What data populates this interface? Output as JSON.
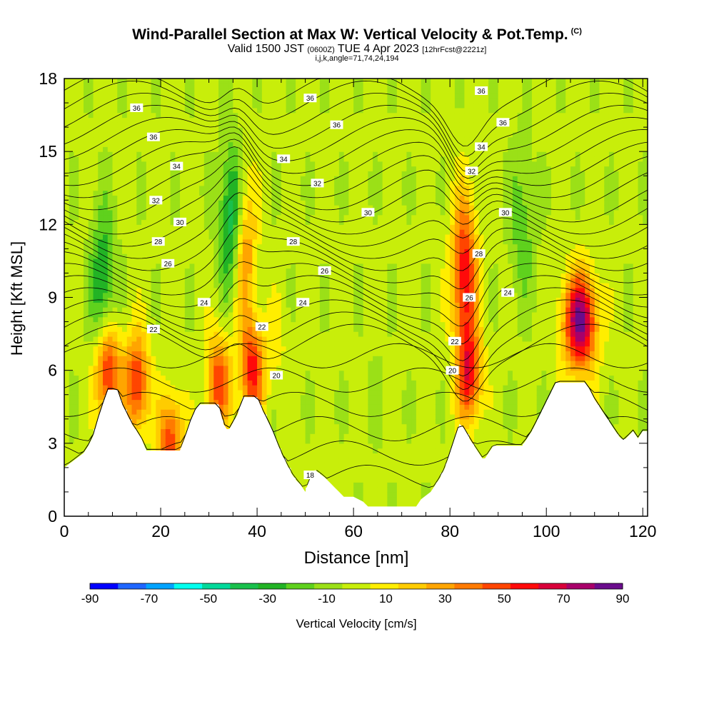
{
  "title": "Wind-Parallel Section at Max W: Vertical Velocity & Pot.Temp.",
  "copyright": "(C)",
  "subtitle": {
    "valid_prefix": "Valid 1500 JST",
    "utc": "(0600Z)",
    "date": "TUE 4 Apr 2023",
    "forecast": "[12hrFcst@2221z]"
  },
  "meta_line": "i,j,k,angle=71,74,24,194",
  "chart_data": {
    "type": "heatmap",
    "xlabel": "Distance [nm]",
    "ylabel": "Height [Kft MSL]",
    "xlim": [
      0,
      121
    ],
    "ylim": [
      0,
      18
    ],
    "xticks": [
      "0",
      "20",
      "40",
      "60",
      "80",
      "100",
      "120"
    ],
    "yticks": [
      "0",
      "3",
      "6",
      "9",
      "12",
      "15",
      "18"
    ],
    "colorbar": {
      "label": "Vertical Velocity [cm/s]",
      "tick_labels": [
        "-90",
        "-70",
        "-50",
        "-30",
        "-10",
        "10",
        "30",
        "50",
        "70",
        "90"
      ],
      "levels": [
        -90,
        -80,
        -70,
        -60,
        -50,
        -40,
        -30,
        -20,
        -10,
        0,
        10,
        20,
        30,
        40,
        50,
        60,
        70,
        80,
        90
      ],
      "colors": [
        "#0000ff",
        "#1f66ff",
        "#00a3ff",
        "#00ffee",
        "#00d99a",
        "#19c04c",
        "#22b325",
        "#5fd11d",
        "#9be017",
        "#c8ee0a",
        "#ffee00",
        "#ffcc00",
        "#ffa500",
        "#ff7a00",
        "#ff4500",
        "#ff0a0a",
        "#d8003a",
        "#a8006a",
        "#6a0c8c"
      ]
    },
    "terrain_kft": [
      [
        0,
        2.0
      ],
      [
        2,
        2.3
      ],
      [
        4,
        2.6
      ],
      [
        5,
        2.9
      ],
      [
        6,
        3.3
      ],
      [
        7,
        4.0
      ],
      [
        8,
        4.6
      ],
      [
        9,
        5.2
      ],
      [
        11,
        5.2
      ],
      [
        12,
        4.6
      ],
      [
        13,
        4.2
      ],
      [
        14,
        3.8
      ],
      [
        15,
        3.5
      ],
      [
        16,
        3.2
      ],
      [
        17,
        2.7
      ],
      [
        24,
        2.7
      ],
      [
        25,
        3.2
      ],
      [
        26,
        3.8
      ],
      [
        27,
        4.3
      ],
      [
        28,
        4.6
      ],
      [
        32,
        4.6
      ],
      [
        33,
        3.8
      ],
      [
        34,
        3.5
      ],
      [
        36,
        4.2
      ],
      [
        37,
        4.9
      ],
      [
        40,
        4.9
      ],
      [
        41,
        4.4
      ],
      [
        42,
        4.0
      ],
      [
        43,
        3.6
      ],
      [
        44,
        3.1
      ],
      [
        45,
        2.6
      ],
      [
        46,
        2.2
      ],
      [
        47,
        1.8
      ],
      [
        48,
        1.5
      ],
      [
        49,
        1.3
      ],
      [
        50,
        1.0
      ],
      [
        51,
        1.6
      ],
      [
        52,
        1.9
      ],
      [
        54,
        1.6
      ],
      [
        55,
        1.4
      ],
      [
        56,
        1.2
      ],
      [
        57,
        1.0
      ],
      [
        58,
        0.8
      ],
      [
        60,
        0.8
      ],
      [
        62,
        0.6
      ],
      [
        63,
        0.4
      ],
      [
        73,
        0.4
      ],
      [
        74,
        0.7
      ],
      [
        76,
        1.0
      ],
      [
        77,
        1.3
      ],
      [
        78,
        1.6
      ],
      [
        79,
        2.0
      ],
      [
        80,
        2.6
      ],
      [
        81,
        3.2
      ],
      [
        82,
        3.8
      ],
      [
        83,
        3.6
      ],
      [
        84,
        3.2
      ],
      [
        85,
        2.9
      ],
      [
        86,
        2.6
      ],
      [
        87,
        2.3
      ],
      [
        88,
        2.6
      ],
      [
        89,
        2.9
      ],
      [
        95,
        2.9
      ],
      [
        96,
        3.2
      ],
      [
        97,
        3.5
      ],
      [
        98,
        3.9
      ],
      [
        99,
        4.3
      ],
      [
        100,
        4.7
      ],
      [
        101,
        5.1
      ],
      [
        102,
        5.5
      ],
      [
        108,
        5.5
      ],
      [
        109,
        5.2
      ],
      [
        110,
        4.8
      ],
      [
        111,
        4.5
      ],
      [
        112,
        4.2
      ],
      [
        113,
        3.9
      ],
      [
        114,
        3.6
      ],
      [
        115,
        3.3
      ],
      [
        116,
        3.1
      ],
      [
        117,
        3.3
      ],
      [
        118,
        3.5
      ],
      [
        119,
        3.2
      ],
      [
        120,
        3.5
      ],
      [
        121,
        3.5
      ]
    ],
    "vertical_velocity_features_cm_s": [
      {
        "x": 9,
        "z": 6.0,
        "w": 65
      },
      {
        "x": 15,
        "z": 5.5,
        "w": 60
      },
      {
        "x": 22,
        "z": 3.0,
        "w": 55
      },
      {
        "x": 32,
        "z": 5.5,
        "w": 55
      },
      {
        "x": 39,
        "z": 6.0,
        "w": 60
      },
      {
        "x": 37,
        "z": 11.0,
        "w": 50
      },
      {
        "x": 35,
        "z": 12.0,
        "w": -55
      },
      {
        "x": 83,
        "z": 10.0,
        "w": 65
      },
      {
        "x": 84,
        "z": 5.8,
        "w": 60
      },
      {
        "x": 107,
        "z": 8.0,
        "w": 90
      },
      {
        "x": 8,
        "z": 9.5,
        "w": -35
      },
      {
        "x": 44,
        "z": 7.0,
        "w": 10
      },
      {
        "x": 65,
        "z": 5.0,
        "w": -5
      },
      {
        "x": 95,
        "z": 12.0,
        "w": -20
      }
    ],
    "potential_temperature_labels": [
      {
        "text": "36",
        "x": 15.0,
        "z": 16.8
      },
      {
        "text": "36",
        "x": 18.5,
        "z": 15.6
      },
      {
        "text": "34",
        "x": 23.3,
        "z": 14.4
      },
      {
        "text": "32",
        "x": 19.0,
        "z": 13.0
      },
      {
        "text": "30",
        "x": 24.0,
        "z": 12.1
      },
      {
        "text": "28",
        "x": 19.5,
        "z": 11.3
      },
      {
        "text": "26",
        "x": 21.5,
        "z": 10.4
      },
      {
        "text": "24",
        "x": 29.0,
        "z": 8.8
      },
      {
        "text": "22",
        "x": 18.5,
        "z": 7.7
      },
      {
        "text": "22",
        "x": 41.0,
        "z": 7.8
      },
      {
        "text": "20",
        "x": 44.0,
        "z": 5.8
      },
      {
        "text": "36",
        "x": 51.0,
        "z": 17.2
      },
      {
        "text": "36",
        "x": 56.5,
        "z": 16.1
      },
      {
        "text": "34",
        "x": 45.5,
        "z": 14.7
      },
      {
        "text": "32",
        "x": 52.5,
        "z": 13.7
      },
      {
        "text": "30",
        "x": 63.0,
        "z": 12.5
      },
      {
        "text": "28",
        "x": 47.5,
        "z": 11.3
      },
      {
        "text": "26",
        "x": 54.0,
        "z": 10.1
      },
      {
        "text": "24",
        "x": 49.5,
        "z": 8.8
      },
      {
        "text": "18",
        "x": 51.0,
        "z": 1.7
      },
      {
        "text": "36",
        "x": 86.5,
        "z": 17.5
      },
      {
        "text": "36",
        "x": 91.0,
        "z": 16.2
      },
      {
        "text": "34",
        "x": 86.5,
        "z": 15.2
      },
      {
        "text": "32",
        "x": 84.5,
        "z": 14.2
      },
      {
        "text": "30",
        "x": 91.5,
        "z": 12.5
      },
      {
        "text": "28",
        "x": 86.0,
        "z": 10.8
      },
      {
        "text": "26",
        "x": 84.0,
        "z": 9.0
      },
      {
        "text": "24",
        "x": 92.0,
        "z": 9.2
      },
      {
        "text": "22",
        "x": 81.0,
        "z": 7.2
      },
      {
        "text": "20",
        "x": 80.5,
        "z": 6.0
      }
    ]
  }
}
